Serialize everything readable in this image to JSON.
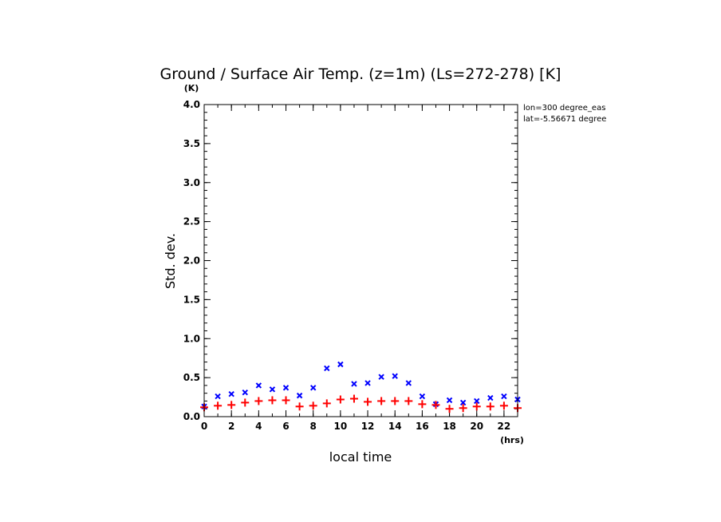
{
  "chart_data": {
    "type": "scatter",
    "title": "Ground / Surface Air Temp. (z=1m) (Ls=272-278) [K]",
    "xlabel": "local time",
    "ylabel": "Std. dev.",
    "xunit": "(hrs)",
    "yunit": "(K)",
    "xlim": [
      0,
      23
    ],
    "ylim": [
      0,
      4.0
    ],
    "xticks": [
      "0",
      "2",
      "4",
      "6",
      "8",
      "10",
      "12",
      "14",
      "16",
      "18",
      "20",
      "22"
    ],
    "yticks": [
      "0.0",
      "0.5",
      "1.0",
      "1.5",
      "2.0",
      "2.5",
      "3.0",
      "3.5",
      "4.0"
    ],
    "annotations": [
      "lon=300 degree_eas",
      "lat=-5.56671 degree"
    ],
    "series": [
      {
        "marker": "x",
        "color": "#0000ff",
        "x": [
          0,
          1,
          2,
          3,
          4,
          5,
          6,
          7,
          8,
          9,
          10,
          11,
          12,
          13,
          14,
          15,
          16,
          17,
          18,
          19,
          20,
          21,
          22,
          23
        ],
        "values": [
          0.13,
          0.26,
          0.29,
          0.31,
          0.4,
          0.35,
          0.37,
          0.27,
          0.37,
          0.62,
          0.67,
          0.42,
          0.43,
          0.51,
          0.52,
          0.43,
          0.26,
          0.16,
          0.21,
          0.18,
          0.2,
          0.24,
          0.26,
          0.22
        ]
      },
      {
        "marker": "+",
        "color": "#ff0000",
        "x": [
          0,
          1,
          2,
          3,
          4,
          5,
          6,
          7,
          8,
          9,
          10,
          11,
          12,
          13,
          14,
          15,
          16,
          17,
          18,
          19,
          20,
          21,
          22,
          23
        ],
        "values": [
          0.12,
          0.14,
          0.15,
          0.18,
          0.2,
          0.21,
          0.21,
          0.13,
          0.14,
          0.17,
          0.22,
          0.23,
          0.19,
          0.2,
          0.2,
          0.2,
          0.16,
          0.15,
          0.1,
          0.11,
          0.13,
          0.13,
          0.14,
          0.11
        ]
      }
    ]
  }
}
